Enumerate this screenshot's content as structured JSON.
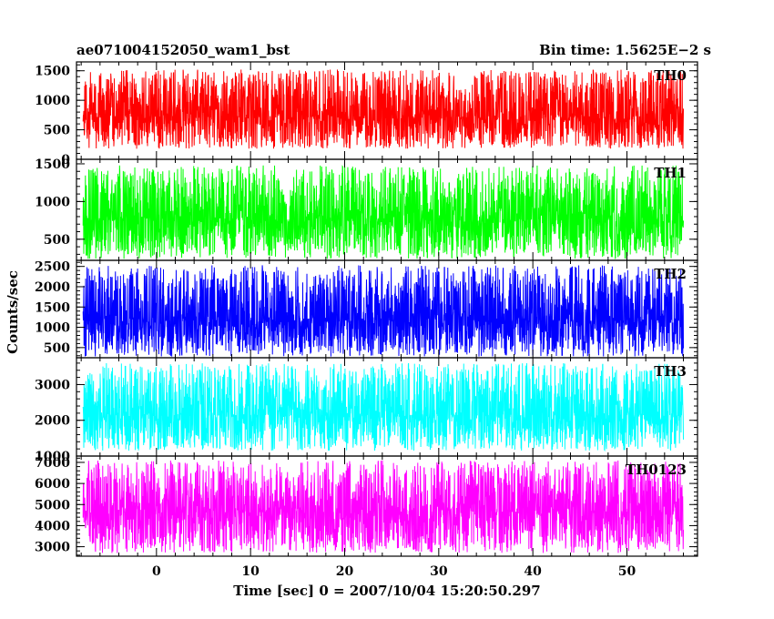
{
  "title_left": "ae071004152050_wam1_bst",
  "title_right": "Bin time: 1.5625E−2 s",
  "chart_data": {
    "type": "line",
    "ylabel": "Counts/sec",
    "xlabel": "Time [sec] 0 = 2007/10/04 15:20:50.297",
    "xlim": [
      -8.5,
      57.5
    ],
    "x_data_range": [
      -7.8,
      56.0
    ],
    "x_ticks": [
      0,
      10,
      20,
      30,
      40,
      50
    ],
    "x_minor_step": 2,
    "panels": [
      {
        "name": "TH0",
        "color": "#ff0000",
        "ylim": [
          0,
          1650
        ],
        "y_ticks": [
          0,
          500,
          1000,
          1500
        ],
        "y_minor_step": 100,
        "mean": 720,
        "noise_lo": 540,
        "noise_hi": 800,
        "seed": 11
      },
      {
        "name": "TH1",
        "color": "#00ff00",
        "ylim": [
          220,
          1560
        ],
        "y_ticks": [
          500,
          1000,
          1500
        ],
        "y_minor_step": 100,
        "mean": 760,
        "noise_lo": 520,
        "noise_hi": 720,
        "seed": 23
      },
      {
        "name": "TH2",
        "color": "#0000ff",
        "ylim": [
          250,
          2650
        ],
        "y_ticks": [
          500,
          1000,
          1500,
          2000,
          2500
        ],
        "y_minor_step": 100,
        "mean": 1180,
        "noise_lo": 900,
        "noise_hi": 1350,
        "seed": 37
      },
      {
        "name": "TH3",
        "color": "#00ffff",
        "ylim": [
          1000,
          3750
        ],
        "y_ticks": [
          1000,
          2000,
          3000
        ],
        "y_minor_step": 200,
        "mean": 2150,
        "noise_lo": 1000,
        "noise_hi": 1450,
        "seed": 41
      },
      {
        "name": "TH0123",
        "color": "#ff00ff",
        "ylim": [
          2550,
          7300
        ],
        "y_ticks": [
          3000,
          4000,
          5000,
          6000,
          7000
        ],
        "y_minor_step": 200,
        "mean": 4700,
        "noise_lo": 2000,
        "noise_hi": 2400,
        "seed": 53
      }
    ]
  }
}
